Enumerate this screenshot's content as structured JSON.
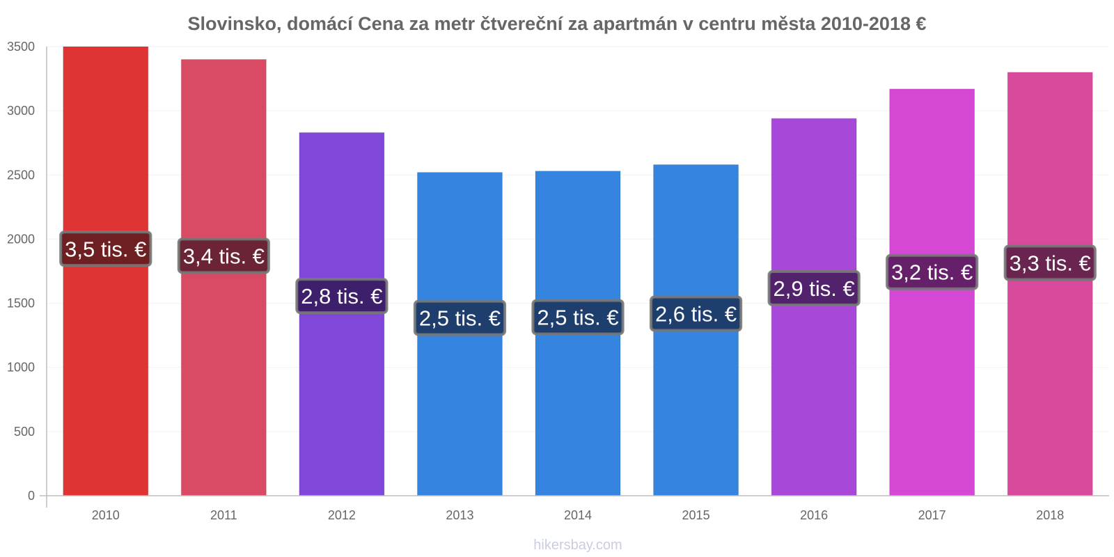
{
  "chart_data": {
    "type": "bar",
    "title": "Slovinsko, domácí Cena za metr čtvereční za apartmán v centru města 2010-2018 €",
    "categories": [
      "2010",
      "2011",
      "2012",
      "2013",
      "2014",
      "2015",
      "2016",
      "2017",
      "2018"
    ],
    "values": [
      3500,
      3400,
      2830,
      2520,
      2530,
      2580,
      2940,
      3170,
      3300
    ],
    "labels": [
      "3,5 tis. €",
      "3,4 tis. €",
      "2,8 tis. €",
      "2,5 tis. €",
      "2,5 tis. €",
      "2,6 tis. €",
      "2,9 tis. €",
      "3,2 tis. €",
      "3,3 tis. €"
    ],
    "colors": [
      "#e03434",
      "#d94a64",
      "#8048d8",
      "#3584e0",
      "#3584e0",
      "#3584e0",
      "#a848d8",
      "#d448d4",
      "#d84a9c"
    ],
    "label_bg_colors": [
      "#6e1f22",
      "#6a2436",
      "#3d1f6c",
      "#1e3f6e",
      "#1e3f6e",
      "#1e3f6e",
      "#52236c",
      "#66206a",
      "#6a2450"
    ],
    "ylim": [
      0,
      3500
    ],
    "yticks": [
      0,
      500,
      1000,
      1500,
      2000,
      2500,
      3000,
      3500
    ],
    "xlabel": "",
    "ylabel": "",
    "grid": true
  },
  "credit": "hikersbay.com"
}
